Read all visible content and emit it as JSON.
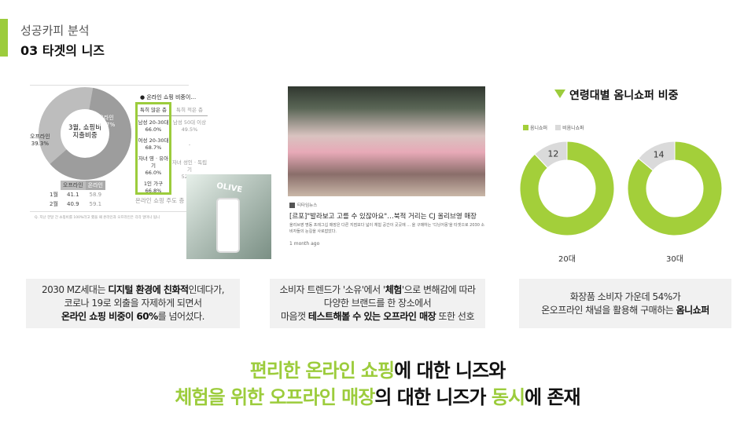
{
  "header": {
    "subtitle": "성공카피 분석",
    "title": "03 타겟의 니즈",
    "accent": "#9ccc3c"
  },
  "infographic": {
    "donut_center": [
      "3월, 쇼핑비",
      "지출비중"
    ],
    "online_label": "온라인",
    "online_value": "60.7%",
    "offline_label": "오프라인",
    "offline_value": "39.3%",
    "table_headers": [
      "오프라인",
      "온라인"
    ],
    "table_rows": [
      [
        "1월",
        "41.1",
        "58.9"
      ],
      [
        "2월",
        "40.9",
        "59.1"
      ]
    ],
    "bullet_title": "● 온라인 쇼핑 비중이…",
    "high_header": "특히 많은 층",
    "low_header": "특히 적은 층",
    "high": [
      [
        "남성 20-30대",
        "66.0%"
      ],
      [
        "여성 20-30대",
        "68.7%"
      ],
      [
        "자녀 영 · 유아기",
        "66.0%"
      ],
      [
        "1인 가구",
        "66.8%"
      ]
    ],
    "low": [
      [
        "남성 50대 이상",
        "49.5%"
      ],
      [
        "-",
        ""
      ],
      [
        "자녀 성인 · 독립기",
        "52.8%"
      ]
    ],
    "caption": "온라인 쇼핑 주도 층",
    "footnote": "Q. 지난 한달 간 쇼핑비를 100%라고 했을 때 온라인과 오프라인은 각각 얼마나 됩니"
  },
  "news": {
    "source": "티타임뉴스",
    "headline": "[르포]\"발라보고 고를 수 있잖아요\"…북적 거리는 CJ 올리브영 매장",
    "snippet": "올리브영 명동 프레그십 매장은 다른 지점보다 넓이 체험 공간이 곳곳에 ... 을 구매하는 '디닝어몽'을 타겟으로 2030 소비자들의 눈길을 사로잡았다.",
    "time": "1 month ago"
  },
  "chart_data": {
    "type": "pie",
    "title": "연령대별 옴니쇼퍼 비중",
    "legend": [
      "옴니쇼퍼",
      "비옴니쇼퍼"
    ],
    "legend_placement": "top-left",
    "colors": [
      "#a3cf3a",
      "#dadada"
    ],
    "charts": [
      {
        "category": "20대",
        "values": [
          88,
          12
        ],
        "label": "12"
      },
      {
        "category": "30대",
        "values": [
          86,
          14
        ],
        "label": "14"
      }
    ]
  },
  "boxes": [
    {
      "lines": [
        "2030 MZ세대는 <b>디지털 환경에 친화적</b>인데다가,",
        "코로나 19로 외출을 자제하게 되면서",
        "<b>온라인 쇼핑 비중이 60%</b>를 넘어섰다."
      ]
    },
    {
      "lines": [
        "소비자 트렌드가 '소유'에서 '<b>체험</b>'으로 변해감에 따라",
        "다양한 브랜드를 한 장소에서",
        "마음껏 <b>테스트해볼 수 있는 오프라인 매장</b> 또한 선호"
      ]
    },
    {
      "lines": [
        "화장품 소비자 가운데 54%가",
        "온오프라인 채널을 활용해 구매하는 <b>옴니쇼퍼</b>"
      ]
    }
  ],
  "headline": {
    "line1": [
      {
        "t": "편리한 온라인 쇼핑",
        "g": true
      },
      {
        "t": "에 대한 니즈와",
        "g": false
      }
    ],
    "line2": [
      {
        "t": "체험을 위한 오프라인 매장",
        "g": true
      },
      {
        "t": "의 대한 니즈가 ",
        "g": false
      },
      {
        "t": "동시",
        "g": true
      },
      {
        "t": "에 존재",
        "g": false
      }
    ]
  }
}
